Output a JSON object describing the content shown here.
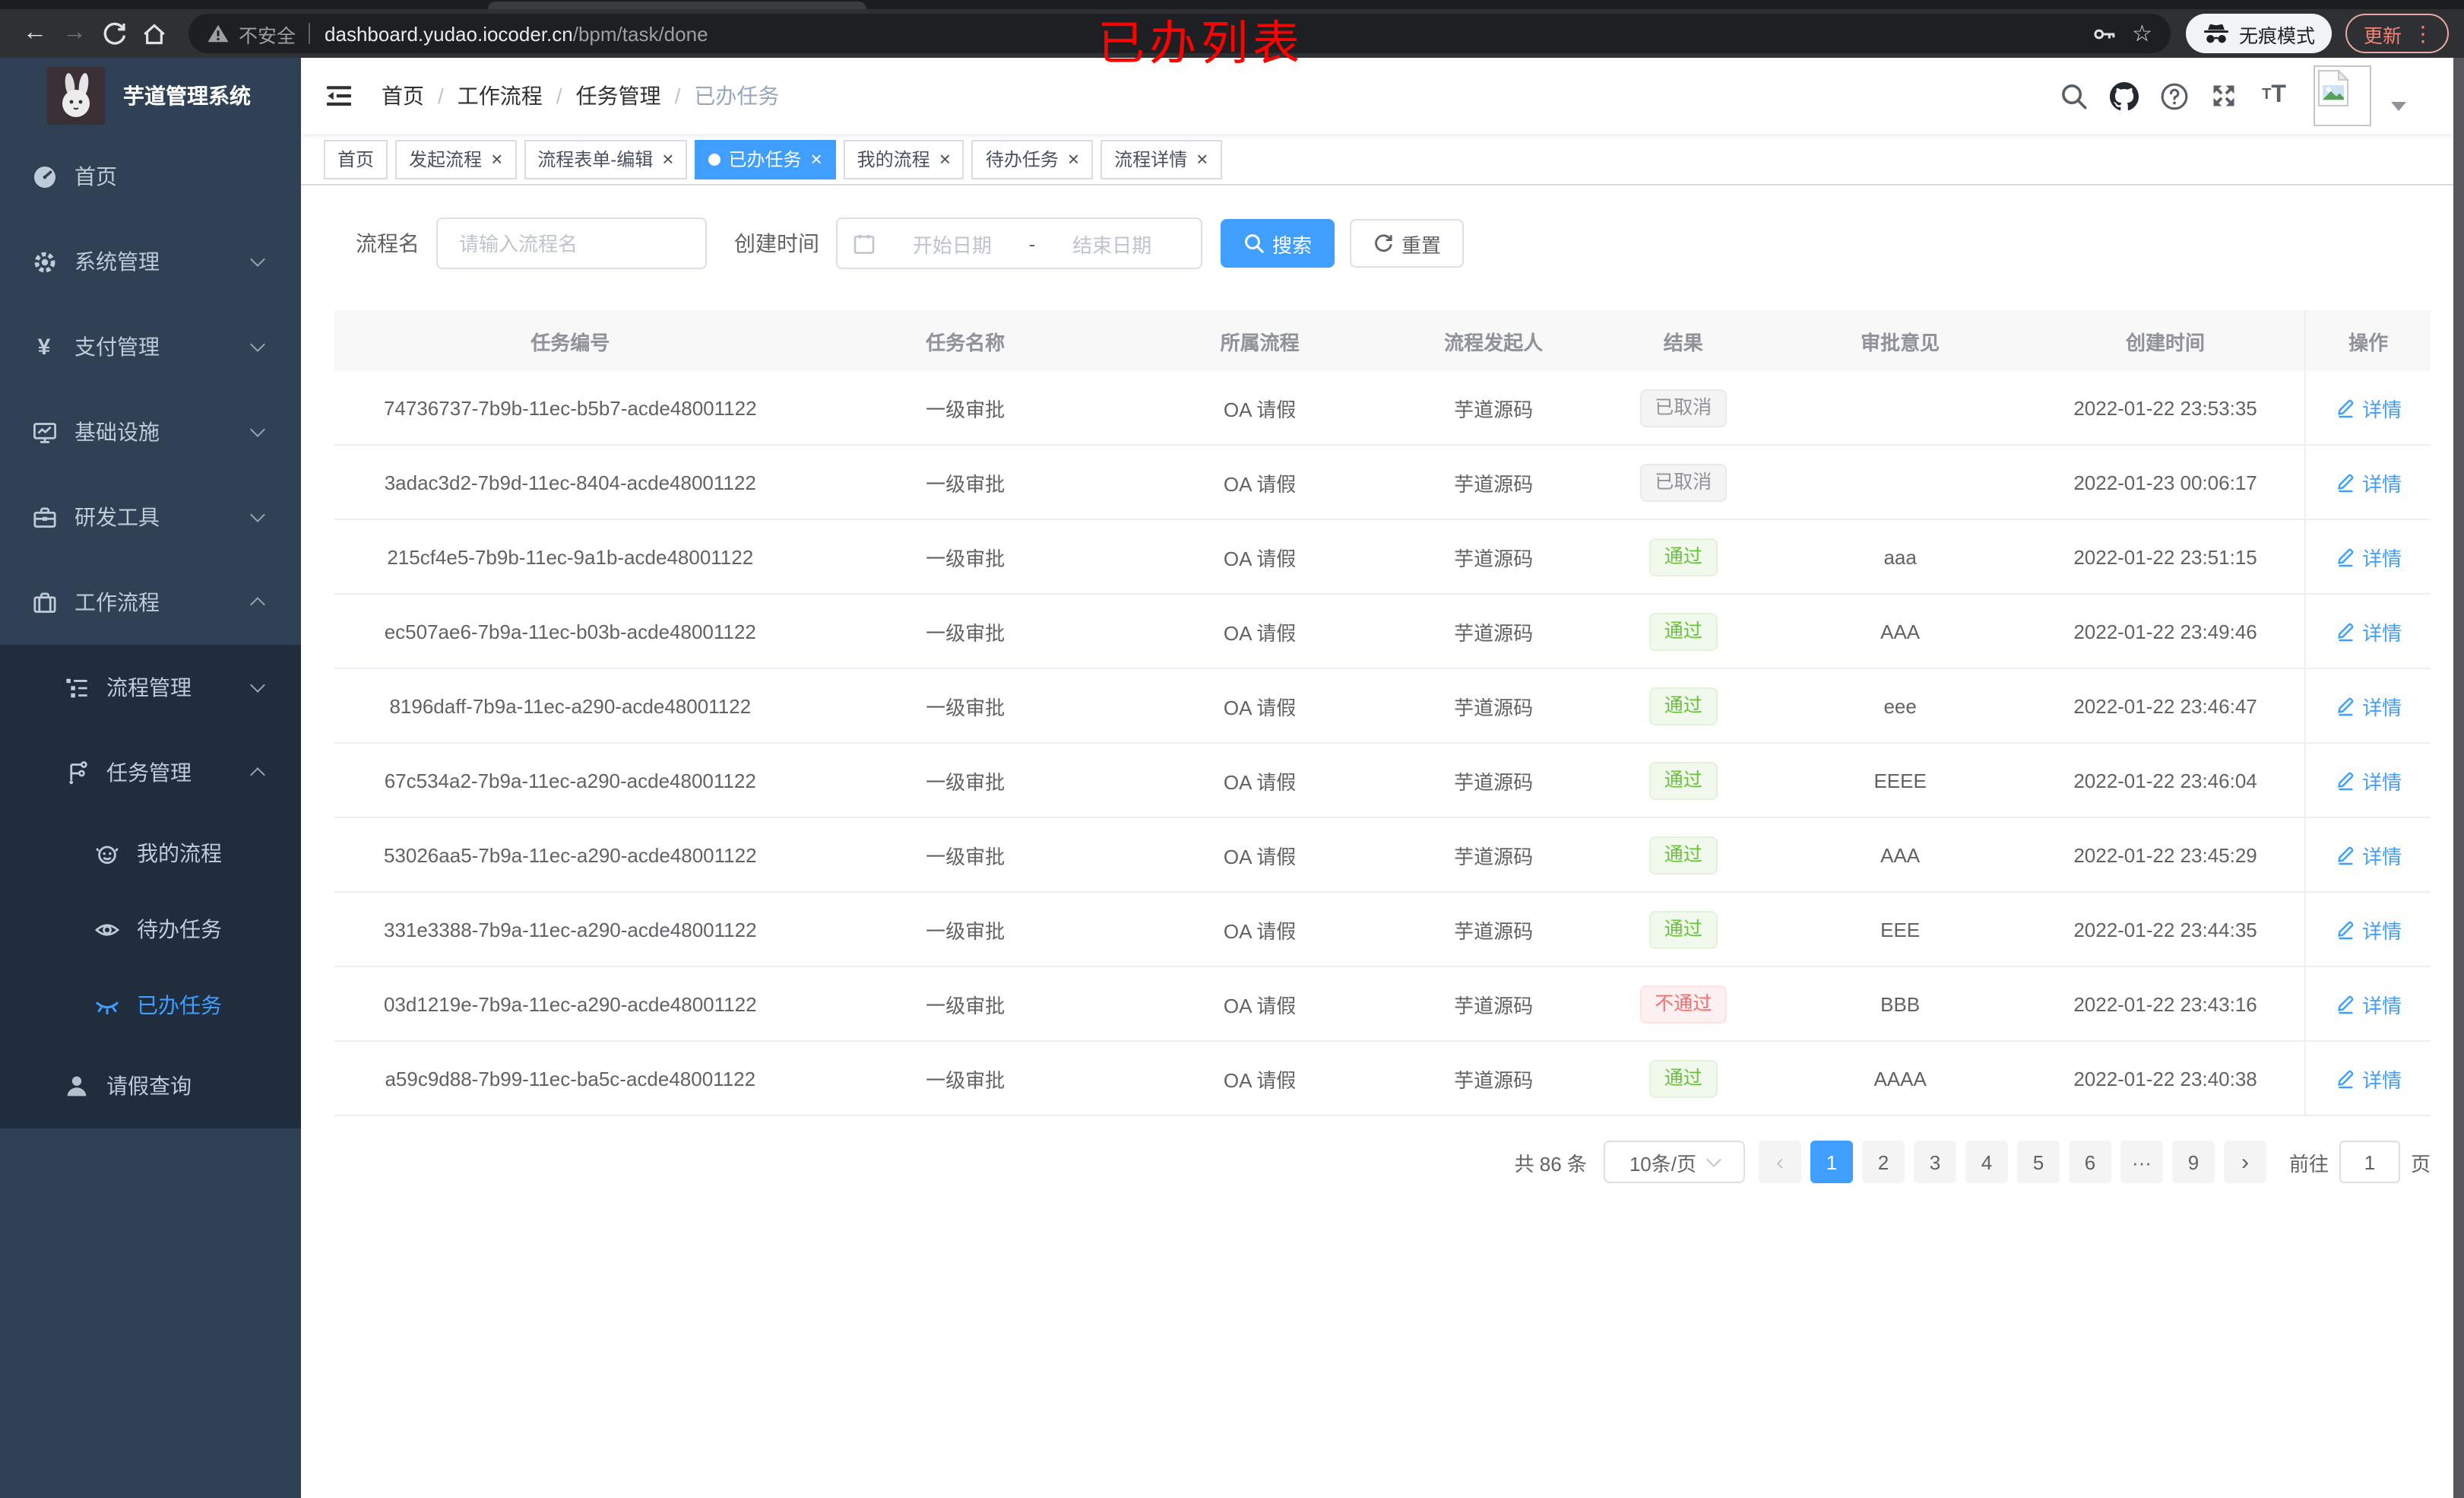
{
  "browser": {
    "security_label": "不安全",
    "url_host": "dashboard.yudao.iocoder.cn",
    "url_path": "/bpm/task/done",
    "incognito_label": "无痕模式",
    "update_label": "更新",
    "annotation": "已办列表"
  },
  "colors": {
    "accent": "#409eff",
    "success": "#67c23a",
    "danger": "#f56c6c",
    "info": "#909399",
    "sidebar_bg": "#304156",
    "submenu_bg": "#1f2d3d",
    "annotation_red": "#fb0100"
  },
  "sidebar": {
    "title": "芋道管理系统",
    "items": [
      {
        "key": "home",
        "label": "首页",
        "icon": "dashboard-icon",
        "depth": 1,
        "sub": false,
        "active": false,
        "chevron": ""
      },
      {
        "key": "system-management",
        "label": "系统管理",
        "icon": "gear-icon",
        "depth": 1,
        "sub": false,
        "active": false,
        "chevron": "down"
      },
      {
        "key": "payment-management",
        "label": "支付管理",
        "icon": "yen-icon",
        "depth": 1,
        "sub": false,
        "active": false,
        "chevron": "down"
      },
      {
        "key": "infrastructure",
        "label": "基础设施",
        "icon": "monitor-icon",
        "depth": 1,
        "sub": false,
        "active": false,
        "chevron": "down"
      },
      {
        "key": "dev-tools",
        "label": "研发工具",
        "icon": "toolbox-icon",
        "depth": 1,
        "sub": false,
        "active": false,
        "chevron": "down"
      },
      {
        "key": "workflow",
        "label": "工作流程",
        "icon": "briefcase-icon",
        "depth": 1,
        "sub": false,
        "active": false,
        "chevron": "up"
      },
      {
        "key": "process-management",
        "label": "流程管理",
        "icon": "list-tree-icon",
        "depth": 2,
        "sub": true,
        "active": false,
        "chevron": "down"
      },
      {
        "key": "task-management",
        "label": "任务管理",
        "icon": "org-tree-icon",
        "depth": 2,
        "sub": true,
        "active": false,
        "chevron": "up"
      },
      {
        "key": "my-processes",
        "label": "我的流程",
        "icon": "robot-face-icon",
        "depth": 3,
        "sub": true,
        "active": false,
        "chevron": ""
      },
      {
        "key": "todo-tasks",
        "label": "待办任务",
        "icon": "eye-icon",
        "depth": 3,
        "sub": true,
        "active": false,
        "chevron": ""
      },
      {
        "key": "done-tasks",
        "label": "已办任务",
        "icon": "eye-closed-icon",
        "depth": 3,
        "sub": true,
        "active": true,
        "chevron": ""
      },
      {
        "key": "leave-query",
        "label": "请假查询",
        "icon": "person-icon",
        "depth": 2,
        "sub": true,
        "active": false,
        "chevron": ""
      }
    ]
  },
  "navbar": {
    "breadcrumb": [
      "首页",
      "工作流程",
      "任务管理",
      "已办任务"
    ]
  },
  "tabs": [
    {
      "key": "home",
      "label": "首页",
      "closable": false,
      "active": false
    },
    {
      "key": "start-process",
      "label": "发起流程",
      "closable": true,
      "active": false
    },
    {
      "key": "process-form-edit",
      "label": "流程表单-编辑",
      "closable": true,
      "active": false
    },
    {
      "key": "done-tasks",
      "label": "已办任务",
      "closable": true,
      "active": true
    },
    {
      "key": "my-processes",
      "label": "我的流程",
      "closable": true,
      "active": false
    },
    {
      "key": "todo-tasks",
      "label": "待办任务",
      "closable": true,
      "active": false
    },
    {
      "key": "process-detail",
      "label": "流程详情",
      "closable": true,
      "active": false
    }
  ],
  "filters": {
    "name_label": "流程名",
    "name_placeholder": "请输入流程名",
    "time_label": "创建时间",
    "start_placeholder": "开始日期",
    "range_separator": "-",
    "end_placeholder": "结束日期",
    "search_label": "搜索",
    "reset_label": "重置"
  },
  "table": {
    "columns": [
      "任务编号",
      "任务名称",
      "所属流程",
      "流程发起人",
      "结果",
      "审批意见",
      "创建时间",
      "操作"
    ],
    "detail_label": "详情",
    "result_styles": {
      "已取消": "info",
      "通过": "success",
      "不通过": "danger"
    },
    "rows": [
      {
        "id": "74736737-7b9b-11ec-b5b7-acde48001122",
        "name": "一级审批",
        "process": "OA 请假",
        "initiator": "芋道源码",
        "result": "已取消",
        "opinion": "",
        "created": "2022-01-22 23:53:35"
      },
      {
        "id": "3adac3d2-7b9d-11ec-8404-acde48001122",
        "name": "一级审批",
        "process": "OA 请假",
        "initiator": "芋道源码",
        "result": "已取消",
        "opinion": "",
        "created": "2022-01-23 00:06:17"
      },
      {
        "id": "215cf4e5-7b9b-11ec-9a1b-acde48001122",
        "name": "一级审批",
        "process": "OA 请假",
        "initiator": "芋道源码",
        "result": "通过",
        "opinion": "aaa",
        "created": "2022-01-22 23:51:15"
      },
      {
        "id": "ec507ae6-7b9a-11ec-b03b-acde48001122",
        "name": "一级审批",
        "process": "OA 请假",
        "initiator": "芋道源码",
        "result": "通过",
        "opinion": "AAA",
        "created": "2022-01-22 23:49:46"
      },
      {
        "id": "8196daff-7b9a-11ec-a290-acde48001122",
        "name": "一级审批",
        "process": "OA 请假",
        "initiator": "芋道源码",
        "result": "通过",
        "opinion": "eee",
        "created": "2022-01-22 23:46:47"
      },
      {
        "id": "67c534a2-7b9a-11ec-a290-acde48001122",
        "name": "一级审批",
        "process": "OA 请假",
        "initiator": "芋道源码",
        "result": "通过",
        "opinion": "EEEE",
        "created": "2022-01-22 23:46:04"
      },
      {
        "id": "53026aa5-7b9a-11ec-a290-acde48001122",
        "name": "一级审批",
        "process": "OA 请假",
        "initiator": "芋道源码",
        "result": "通过",
        "opinion": "AAA",
        "created": "2022-01-22 23:45:29"
      },
      {
        "id": "331e3388-7b9a-11ec-a290-acde48001122",
        "name": "一级审批",
        "process": "OA 请假",
        "initiator": "芋道源码",
        "result": "通过",
        "opinion": "EEE",
        "created": "2022-01-22 23:44:35"
      },
      {
        "id": "03d1219e-7b9a-11ec-a290-acde48001122",
        "name": "一级审批",
        "process": "OA 请假",
        "initiator": "芋道源码",
        "result": "不通过",
        "opinion": "BBB",
        "created": "2022-01-22 23:43:16"
      },
      {
        "id": "a59c9d88-7b99-11ec-ba5c-acde48001122",
        "name": "一级审批",
        "process": "OA 请假",
        "initiator": "芋道源码",
        "result": "通过",
        "opinion": "AAAA",
        "created": "2022-01-22 23:40:38"
      }
    ]
  },
  "pagination": {
    "total_label": "共 86 条",
    "page_size_label": "10条/页",
    "pages": [
      "1",
      "2",
      "3",
      "4",
      "5",
      "6",
      "···",
      "9"
    ],
    "active_page": "1",
    "goto_label": "前往",
    "goto_value": "1",
    "goto_suffix": "页"
  }
}
